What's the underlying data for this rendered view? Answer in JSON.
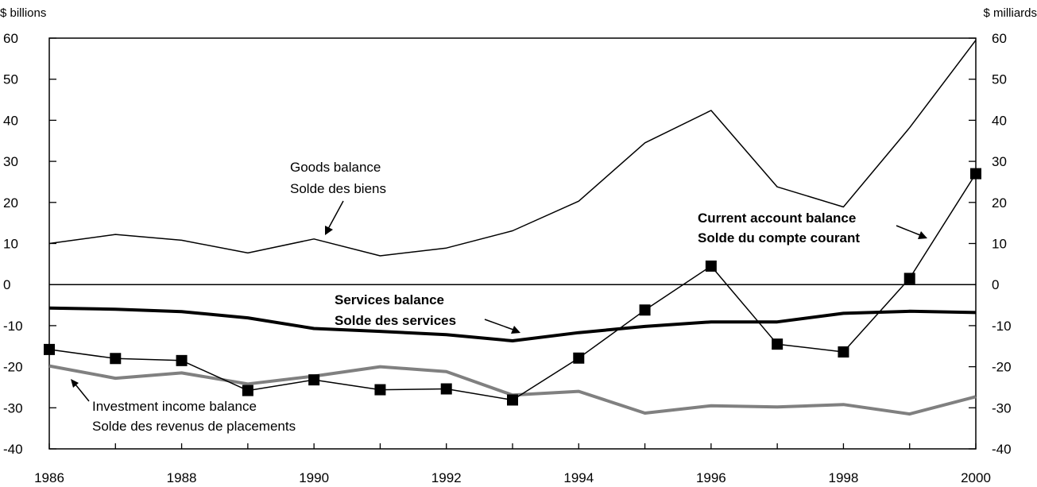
{
  "chart_data": {
    "type": "line",
    "left_unit": "$ billions",
    "right_unit": "$ milliards",
    "x": [
      1986,
      1987,
      1988,
      1989,
      1990,
      1991,
      1992,
      1993,
      1994,
      1995,
      1996,
      1997,
      1998,
      1999,
      2000
    ],
    "xlim": [
      1986,
      2000
    ],
    "ylim": [
      -40,
      60
    ],
    "x_ticks": [
      "1986",
      "1988",
      "1990",
      "1992",
      "1994",
      "1996",
      "1998",
      "2000"
    ],
    "y_ticks": [
      "60",
      "50",
      "40",
      "30",
      "20",
      "10",
      "0",
      "-10",
      "-20",
      "-30",
      "-40"
    ],
    "grid": false,
    "series": [
      {
        "key": "goods",
        "label_en": "Goods balance",
        "label_fr": "Solde des biens",
        "color": "#000000",
        "values": [
          10.0,
          12.2,
          10.8,
          7.7,
          11.1,
          7.0,
          8.9,
          13.1,
          20.3,
          34.5,
          42.4,
          23.8,
          18.9,
          38.2,
          59.5
        ]
      },
      {
        "key": "services",
        "label_en": "Services balance",
        "label_fr": "Solde des services",
        "color": "#000000",
        "values": [
          -5.7,
          -6.0,
          -6.6,
          -8.1,
          -10.7,
          -11.4,
          -12.2,
          -13.7,
          -11.7,
          -10.2,
          -9.1,
          -9.1,
          -7.0,
          -6.5,
          -6.8
        ]
      },
      {
        "key": "investment",
        "label_en": "Investment income balance",
        "label_fr": "Solde des revenus de placements",
        "color": "#808080",
        "values": [
          -19.8,
          -22.8,
          -21.5,
          -24.2,
          -22.3,
          -20.0,
          -21.2,
          -26.9,
          -26.0,
          -31.3,
          -29.5,
          -29.8,
          -29.2,
          -31.5,
          -27.3
        ]
      },
      {
        "key": "current",
        "label_en": "Current account balance",
        "label_fr": "Solde du compte courant",
        "color": "#000000",
        "values": [
          -15.8,
          -18.0,
          -18.5,
          -25.8,
          -23.2,
          -25.6,
          -25.4,
          -28.1,
          -17.9,
          -6.2,
          4.5,
          -14.5,
          -16.4,
          1.5,
          27.0
        ]
      }
    ]
  }
}
